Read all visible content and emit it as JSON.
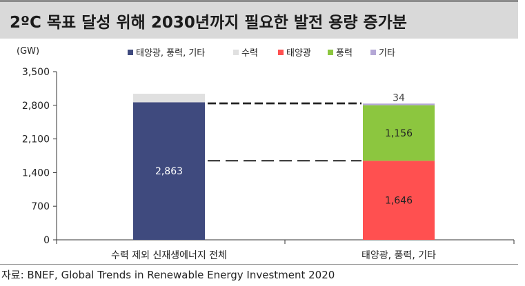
{
  "title": "2ºC 목표 달성 위해 2030년까지 필요한 발전 용량 증가분",
  "source": "자료: BNEF, Global Trends in Renewable Energy Investment 2020",
  "chart_data": {
    "type": "bar",
    "stacked": true,
    "ylabel": "(GW)",
    "ylim": [
      0,
      3500
    ],
    "yticks": [
      "0",
      "700",
      "1,400",
      "2,100",
      "2,800",
      "3,500"
    ],
    "ytick_values": [
      0,
      700,
      1400,
      2100,
      2800,
      3500
    ],
    "categories": [
      "수력 제외 신재생에너지 전체",
      "태양광, 풍력, 기타"
    ],
    "series": [
      {
        "name": "태양광, 풍력, 기타",
        "color": "#3f4a7e",
        "values": [
          2863,
          0
        ],
        "labels": [
          "2,863",
          ""
        ]
      },
      {
        "name": "수력",
        "color": "#e0e0e0",
        "values": [
          177,
          0
        ],
        "labels": [
          "",
          ""
        ]
      },
      {
        "name": "태양광",
        "color": "#ff5050",
        "values": [
          0,
          1646
        ],
        "labels": [
          "",
          "1,646"
        ]
      },
      {
        "name": "풍력",
        "color": "#8cc63f",
        "values": [
          0,
          1156
        ],
        "labels": [
          "",
          "1,156"
        ]
      },
      {
        "name": "기타",
        "color": "#b4a7d6",
        "values": [
          0,
          34
        ],
        "labels": [
          "",
          "34"
        ]
      }
    ],
    "legend_position": "top",
    "grid": false
  }
}
